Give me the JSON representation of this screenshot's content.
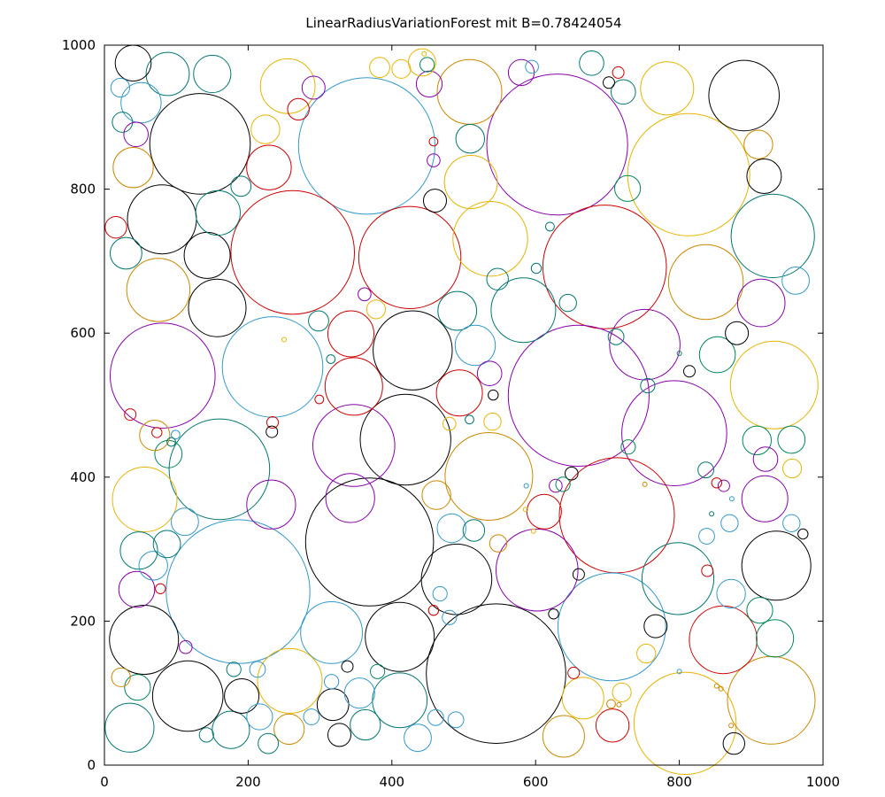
{
  "chart_data": {
    "type": "scatter",
    "title": "LinearRadiusVariationForest mit B=0.78424054",
    "xlabel": "",
    "ylabel": "",
    "xlim": [
      0,
      1000
    ],
    "ylim": [
      0,
      1000
    ],
    "xticks": [
      0,
      200,
      400,
      600,
      800,
      1000
    ],
    "yticks": [
      0,
      200,
      400,
      600,
      800,
      1000
    ],
    "grid": false,
    "marker": "open circles, radius in data units",
    "colors": {
      "black": "#000000",
      "teal": "#00786f",
      "sky": "#3399cc",
      "gold": "#e8b400",
      "orange": "#cc8800",
      "red": "#cc0000",
      "purple": "#8800aa",
      "green": "#008855"
    },
    "circles": [
      {
        "x": 365,
        "y": 860,
        "r": 95,
        "c": "sky"
      },
      {
        "x": 630,
        "y": 862,
        "r": 98,
        "c": "purple"
      },
      {
        "x": 813,
        "y": 820,
        "r": 85,
        "c": "gold"
      },
      {
        "x": 133,
        "y": 863,
        "r": 70,
        "c": "black"
      },
      {
        "x": 262,
        "y": 712,
        "r": 86,
        "c": "red"
      },
      {
        "x": 425,
        "y": 705,
        "r": 71,
        "c": "red"
      },
      {
        "x": 696,
        "y": 692,
        "r": 86,
        "c": "red"
      },
      {
        "x": 890,
        "y": 930,
        "r": 49,
        "c": "black"
      },
      {
        "x": 930,
        "y": 735,
        "r": 58,
        "c": "teal"
      },
      {
        "x": 80,
        "y": 758,
        "r": 48,
        "c": "black"
      },
      {
        "x": 660,
        "y": 513,
        "r": 98,
        "c": "purple"
      },
      {
        "x": 81,
        "y": 541,
        "r": 73,
        "c": "purple"
      },
      {
        "x": 234,
        "y": 553,
        "r": 70,
        "c": "sky"
      },
      {
        "x": 429,
        "y": 576,
        "r": 55,
        "c": "black"
      },
      {
        "x": 932,
        "y": 528,
        "r": 61,
        "c": "gold"
      },
      {
        "x": 793,
        "y": 461,
        "r": 73,
        "c": "purple"
      },
      {
        "x": 160,
        "y": 411,
        "r": 70,
        "c": "teal"
      },
      {
        "x": 419,
        "y": 452,
        "r": 63,
        "c": "black"
      },
      {
        "x": 347,
        "y": 444,
        "r": 57,
        "c": "purple"
      },
      {
        "x": 535,
        "y": 401,
        "r": 61,
        "c": "orange"
      },
      {
        "x": 369,
        "y": 310,
        "r": 89,
        "c": "black"
      },
      {
        "x": 186,
        "y": 241,
        "r": 100,
        "c": "sky"
      },
      {
        "x": 713,
        "y": 347,
        "r": 80,
        "c": "red"
      },
      {
        "x": 545,
        "y": 127,
        "r": 97,
        "c": "black"
      },
      {
        "x": 706,
        "y": 192,
        "r": 75,
        "c": "sky"
      },
      {
        "x": 808,
        "y": 58,
        "r": 71,
        "c": "gold"
      },
      {
        "x": 928,
        "y": 90,
        "r": 61,
        "c": "orange"
      },
      {
        "x": 935,
        "y": 277,
        "r": 48,
        "c": "black"
      },
      {
        "x": 490,
        "y": 258,
        "r": 49,
        "c": "black"
      },
      {
        "x": 602,
        "y": 271,
        "r": 57,
        "c": "purple"
      },
      {
        "x": 798,
        "y": 259,
        "r": 50,
        "c": "teal"
      },
      {
        "x": 411,
        "y": 178,
        "r": 48,
        "c": "black"
      },
      {
        "x": 55,
        "y": 174,
        "r": 48,
        "c": "black"
      },
      {
        "x": 116,
        "y": 96,
        "r": 49,
        "c": "black"
      },
      {
        "x": 316,
        "y": 184,
        "r": 43,
        "c": "sky"
      },
      {
        "x": 258,
        "y": 117,
        "r": 45,
        "c": "gold"
      },
      {
        "x": 411,
        "y": 90,
        "r": 38,
        "c": "teal"
      },
      {
        "x": 861,
        "y": 174,
        "r": 47,
        "c": "red"
      },
      {
        "x": 56,
        "y": 369,
        "r": 45,
        "c": "gold"
      },
      {
        "x": 752,
        "y": 584,
        "r": 49,
        "c": "purple"
      },
      {
        "x": 837,
        "y": 671,
        "r": 52,
        "c": "orange"
      },
      {
        "x": 537,
        "y": 731,
        "r": 52,
        "c": "gold"
      },
      {
        "x": 583,
        "y": 632,
        "r": 45,
        "c": "teal"
      },
      {
        "x": 75,
        "y": 660,
        "r": 44,
        "c": "orange"
      },
      {
        "x": 157,
        "y": 635,
        "r": 40,
        "c": "black"
      },
      {
        "x": 143,
        "y": 708,
        "r": 32,
        "c": "black"
      },
      {
        "x": 158,
        "y": 767,
        "r": 31,
        "c": "teal"
      },
      {
        "x": 229,
        "y": 830,
        "r": 31,
        "c": "red"
      },
      {
        "x": 255,
        "y": 943,
        "r": 38,
        "c": "gold"
      },
      {
        "x": 508,
        "y": 935,
        "r": 45,
        "c": "orange"
      },
      {
        "x": 783,
        "y": 940,
        "r": 37,
        "c": "gold"
      },
      {
        "x": 88,
        "y": 960,
        "r": 30,
        "c": "teal"
      },
      {
        "x": 150,
        "y": 960,
        "r": 26,
        "c": "teal"
      },
      {
        "x": 40,
        "y": 975,
        "r": 25,
        "c": "black"
      },
      {
        "x": 51,
        "y": 920,
        "r": 28,
        "c": "sky"
      },
      {
        "x": 40,
        "y": 830,
        "r": 28,
        "c": "orange"
      },
      {
        "x": 30,
        "y": 711,
        "r": 22,
        "c": "teal"
      },
      {
        "x": 342,
        "y": 371,
        "r": 34,
        "c": "purple"
      },
      {
        "x": 494,
        "y": 517,
        "r": 32,
        "c": "red"
      },
      {
        "x": 347,
        "y": 526,
        "r": 40,
        "c": "red"
      },
      {
        "x": 343,
        "y": 599,
        "r": 32,
        "c": "red"
      },
      {
        "x": 491,
        "y": 631,
        "r": 27,
        "c": "teal"
      },
      {
        "x": 516,
        "y": 583,
        "r": 28,
        "c": "sky"
      },
      {
        "x": 510,
        "y": 810,
        "r": 37,
        "c": "gold"
      },
      {
        "x": 587,
        "y": 388,
        "r": 0,
        "c": "sky"
      },
      {
        "x": 914,
        "y": 642,
        "r": 33,
        "c": "purple"
      },
      {
        "x": 853,
        "y": 570,
        "r": 25,
        "c": "green"
      },
      {
        "x": 919,
        "y": 370,
        "r": 32,
        "c": "purple"
      },
      {
        "x": 845,
        "y": 349,
        "r": 0,
        "c": "teal"
      },
      {
        "x": 48,
        "y": 298,
        "r": 26,
        "c": "teal"
      },
      {
        "x": 45,
        "y": 244,
        "r": 25,
        "c": "purple"
      },
      {
        "x": 68,
        "y": 277,
        "r": 20,
        "c": "sky"
      },
      {
        "x": 87,
        "y": 307,
        "r": 19,
        "c": "teal"
      },
      {
        "x": 112,
        "y": 338,
        "r": 19,
        "c": "sky"
      },
      {
        "x": 89,
        "y": 432,
        "r": 19,
        "c": "green"
      },
      {
        "x": 70,
        "y": 458,
        "r": 21,
        "c": "orange"
      },
      {
        "x": 232,
        "y": 362,
        "r": 34,
        "c": "purple"
      },
      {
        "x": 46,
        "y": 108,
        "r": 18,
        "c": "green"
      },
      {
        "x": 35,
        "y": 52,
        "r": 34,
        "c": "teal"
      },
      {
        "x": 176,
        "y": 49,
        "r": 26,
        "c": "teal"
      },
      {
        "x": 191,
        "y": 96,
        "r": 24,
        "c": "black"
      },
      {
        "x": 216,
        "y": 67,
        "r": 18,
        "c": "sky"
      },
      {
        "x": 257,
        "y": 50,
        "r": 21,
        "c": "orange"
      },
      {
        "x": 318,
        "y": 84,
        "r": 22,
        "c": "black"
      },
      {
        "x": 355,
        "y": 100,
        "r": 21,
        "c": "sky"
      },
      {
        "x": 363,
        "y": 56,
        "r": 21,
        "c": "teal"
      },
      {
        "x": 327,
        "y": 42,
        "r": 16,
        "c": "black"
      },
      {
        "x": 436,
        "y": 38,
        "r": 19,
        "c": "sky"
      },
      {
        "x": 461,
        "y": 66,
        "r": 11,
        "c": "sky"
      },
      {
        "x": 639,
        "y": 40,
        "r": 29,
        "c": "orange"
      },
      {
        "x": 666,
        "y": 93,
        "r": 29,
        "c": "gold"
      },
      {
        "x": 707,
        "y": 55,
        "r": 23,
        "c": "red"
      },
      {
        "x": 720,
        "y": 101,
        "r": 13,
        "c": "gold"
      },
      {
        "x": 876,
        "y": 30,
        "r": 15,
        "c": "black"
      },
      {
        "x": 872,
        "y": 238,
        "r": 20,
        "c": "sky"
      },
      {
        "x": 912,
        "y": 215,
        "r": 18,
        "c": "green"
      },
      {
        "x": 933,
        "y": 176,
        "r": 26,
        "c": "green"
      },
      {
        "x": 767,
        "y": 193,
        "r": 16,
        "c": "black"
      },
      {
        "x": 754,
        "y": 155,
        "r": 13,
        "c": "gold"
      },
      {
        "x": 462,
        "y": 375,
        "r": 20,
        "c": "orange"
      },
      {
        "x": 483,
        "y": 329,
        "r": 20,
        "c": "sky"
      },
      {
        "x": 514,
        "y": 326,
        "r": 15,
        "c": "teal"
      },
      {
        "x": 612,
        "y": 352,
        "r": 24,
        "c": "red"
      },
      {
        "x": 800,
        "y": 572,
        "r": 0,
        "c": "green"
      },
      {
        "x": 908,
        "y": 451,
        "r": 20,
        "c": "green"
      },
      {
        "x": 956,
        "y": 452,
        "r": 19,
        "c": "green"
      },
      {
        "x": 920,
        "y": 425,
        "r": 17,
        "c": "purple"
      },
      {
        "x": 957,
        "y": 412,
        "r": 13,
        "c": "gold"
      },
      {
        "x": 962,
        "y": 673,
        "r": 19,
        "c": "sky"
      },
      {
        "x": 880,
        "y": 600,
        "r": 16,
        "c": "black"
      },
      {
        "x": 910,
        "y": 862,
        "r": 20,
        "c": "orange"
      },
      {
        "x": 918,
        "y": 818,
        "r": 24,
        "c": "black"
      },
      {
        "x": 728,
        "y": 801,
        "r": 18,
        "c": "green"
      },
      {
        "x": 722,
        "y": 935,
        "r": 17,
        "c": "teal"
      },
      {
        "x": 678,
        "y": 975,
        "r": 17,
        "c": "teal"
      },
      {
        "x": 580,
        "y": 962,
        "r": 18,
        "c": "purple"
      },
      {
        "x": 452,
        "y": 946,
        "r": 18,
        "c": "purple"
      },
      {
        "x": 413,
        "y": 967,
        "r": 13,
        "c": "gold"
      },
      {
        "x": 383,
        "y": 969,
        "r": 14,
        "c": "gold"
      },
      {
        "x": 442,
        "y": 976,
        "r": 19,
        "c": "gold"
      },
      {
        "x": 291,
        "y": 941,
        "r": 16,
        "c": "purple"
      },
      {
        "x": 270,
        "y": 911,
        "r": 15,
        "c": "red"
      },
      {
        "x": 224,
        "y": 883,
        "r": 20,
        "c": "gold"
      },
      {
        "x": 190,
        "y": 804,
        "r": 14,
        "c": "teal"
      },
      {
        "x": 25,
        "y": 893,
        "r": 14,
        "c": "teal"
      },
      {
        "x": 22,
        "y": 941,
        "r": 13,
        "c": "sky"
      },
      {
        "x": 44,
        "y": 876,
        "r": 17,
        "c": "purple"
      },
      {
        "x": 16,
        "y": 747,
        "r": 15,
        "c": "red"
      },
      {
        "x": 460,
        "y": 784,
        "r": 16,
        "c": "black"
      },
      {
        "x": 509,
        "y": 870,
        "r": 20,
        "c": "teal"
      },
      {
        "x": 547,
        "y": 675,
        "r": 15,
        "c": "teal"
      },
      {
        "x": 645,
        "y": 642,
        "r": 12,
        "c": "teal"
      },
      {
        "x": 712,
        "y": 595,
        "r": 11,
        "c": "teal"
      },
      {
        "x": 756,
        "y": 527,
        "r": 10,
        "c": "teal"
      },
      {
        "x": 729,
        "y": 442,
        "r": 10,
        "c": "green"
      },
      {
        "x": 837,
        "y": 410,
        "r": 11,
        "c": "teal"
      },
      {
        "x": 873,
        "y": 370,
        "r": 0,
        "c": "sky"
      },
      {
        "x": 838,
        "y": 318,
        "r": 11,
        "c": "sky"
      },
      {
        "x": 870,
        "y": 336,
        "r": 12,
        "c": "sky"
      },
      {
        "x": 956,
        "y": 336,
        "r": 12,
        "c": "sky"
      },
      {
        "x": 972,
        "y": 321,
        "r": 7,
        "c": "black"
      },
      {
        "x": 839,
        "y": 270,
        "r": 8,
        "c": "red"
      },
      {
        "x": 650,
        "y": 405,
        "r": 9,
        "c": "black"
      },
      {
        "x": 660,
        "y": 265,
        "r": 8,
        "c": "black"
      },
      {
        "x": 625,
        "y": 210,
        "r": 7,
        "c": "black"
      },
      {
        "x": 653,
        "y": 128,
        "r": 8,
        "c": "red"
      },
      {
        "x": 540,
        "y": 477,
        "r": 12,
        "c": "gold"
      },
      {
        "x": 536,
        "y": 544,
        "r": 17,
        "c": "purple"
      },
      {
        "x": 541,
        "y": 514,
        "r": 7,
        "c": "black"
      },
      {
        "x": 480,
        "y": 474,
        "r": 9,
        "c": "gold"
      },
      {
        "x": 508,
        "y": 480,
        "r": 6,
        "c": "teal"
      },
      {
        "x": 548,
        "y": 308,
        "r": 12,
        "c": "orange"
      },
      {
        "x": 467,
        "y": 238,
        "r": 10,
        "c": "sky"
      },
      {
        "x": 458,
        "y": 215,
        "r": 7,
        "c": "red"
      },
      {
        "x": 480,
        "y": 205,
        "r": 10,
        "c": "sky"
      },
      {
        "x": 489,
        "y": 63,
        "r": 11,
        "c": "sky"
      },
      {
        "x": 380,
        "y": 130,
        "r": 10,
        "c": "green"
      },
      {
        "x": 338,
        "y": 137,
        "r": 8,
        "c": "black"
      },
      {
        "x": 316,
        "y": 116,
        "r": 10,
        "c": "sky"
      },
      {
        "x": 288,
        "y": 67,
        "r": 11,
        "c": "sky"
      },
      {
        "x": 213,
        "y": 133,
        "r": 11,
        "c": "sky"
      },
      {
        "x": 180,
        "y": 133,
        "r": 10,
        "c": "teal"
      },
      {
        "x": 113,
        "y": 164,
        "r": 9,
        "c": "purple"
      },
      {
        "x": 142,
        "y": 42,
        "r": 10,
        "c": "teal"
      },
      {
        "x": 228,
        "y": 30,
        "r": 14,
        "c": "teal"
      },
      {
        "x": 23,
        "y": 122,
        "r": 13,
        "c": "orange"
      },
      {
        "x": 78,
        "y": 245,
        "r": 7,
        "c": "red"
      },
      {
        "x": 36,
        "y": 487,
        "r": 8,
        "c": "red"
      },
      {
        "x": 73,
        "y": 462,
        "r": 7,
        "c": "red"
      },
      {
        "x": 99,
        "y": 459,
        "r": 6,
        "c": "sky"
      },
      {
        "x": 93,
        "y": 449,
        "r": 6,
        "c": "teal"
      },
      {
        "x": 234,
        "y": 476,
        "r": 8,
        "c": "red"
      },
      {
        "x": 233,
        "y": 463,
        "r": 8,
        "c": "black"
      },
      {
        "x": 298,
        "y": 617,
        "r": 14,
        "c": "teal"
      },
      {
        "x": 299,
        "y": 508,
        "r": 6,
        "c": "red"
      },
      {
        "x": 315,
        "y": 564,
        "r": 6,
        "c": "teal"
      },
      {
        "x": 362,
        "y": 654,
        "r": 9,
        "c": "purple"
      },
      {
        "x": 378,
        "y": 633,
        "r": 13,
        "c": "gold"
      },
      {
        "x": 601,
        "y": 690,
        "r": 7,
        "c": "teal"
      },
      {
        "x": 620,
        "y": 748,
        "r": 6,
        "c": "teal"
      },
      {
        "x": 702,
        "y": 948,
        "r": 8,
        "c": "black"
      },
      {
        "x": 715,
        "y": 962,
        "r": 8,
        "c": "red"
      },
      {
        "x": 595,
        "y": 970,
        "r": 9,
        "c": "sky"
      },
      {
        "x": 445,
        "y": 988,
        "r": 0,
        "c": "gold"
      },
      {
        "x": 449,
        "y": 973,
        "r": 10,
        "c": "green"
      },
      {
        "x": 458,
        "y": 866,
        "r": 6,
        "c": "red"
      },
      {
        "x": 458,
        "y": 840,
        "r": 9,
        "c": "purple"
      },
      {
        "x": 250,
        "y": 591,
        "r": 0,
        "c": "gold"
      },
      {
        "x": 800,
        "y": 130,
        "r": 0,
        "c": "sky"
      },
      {
        "x": 752,
        "y": 390,
        "r": 0,
        "c": "orange"
      },
      {
        "x": 862,
        "y": 388,
        "r": 8,
        "c": "purple"
      },
      {
        "x": 852,
        "y": 392,
        "r": 7,
        "c": "red"
      },
      {
        "x": 716,
        "y": 84,
        "r": 0,
        "c": "orange"
      },
      {
        "x": 705,
        "y": 85,
        "r": 6,
        "c": "orange"
      },
      {
        "x": 814,
        "y": 547,
        "r": 8,
        "c": "black"
      },
      {
        "x": 852,
        "y": 110,
        "r": 0,
        "c": "orange"
      },
      {
        "x": 628,
        "y": 388,
        "r": 9,
        "c": "purple"
      },
      {
        "x": 638,
        "y": 390,
        "r": 10,
        "c": "green"
      },
      {
        "x": 586,
        "y": 355,
        "r": 0,
        "c": "gold"
      },
      {
        "x": 597,
        "y": 325,
        "r": 0,
        "c": "gold"
      },
      {
        "x": 858,
        "y": 106,
        "r": 0,
        "c": "orange"
      },
      {
        "x": 872,
        "y": 55,
        "r": 0,
        "c": "orange"
      }
    ]
  }
}
